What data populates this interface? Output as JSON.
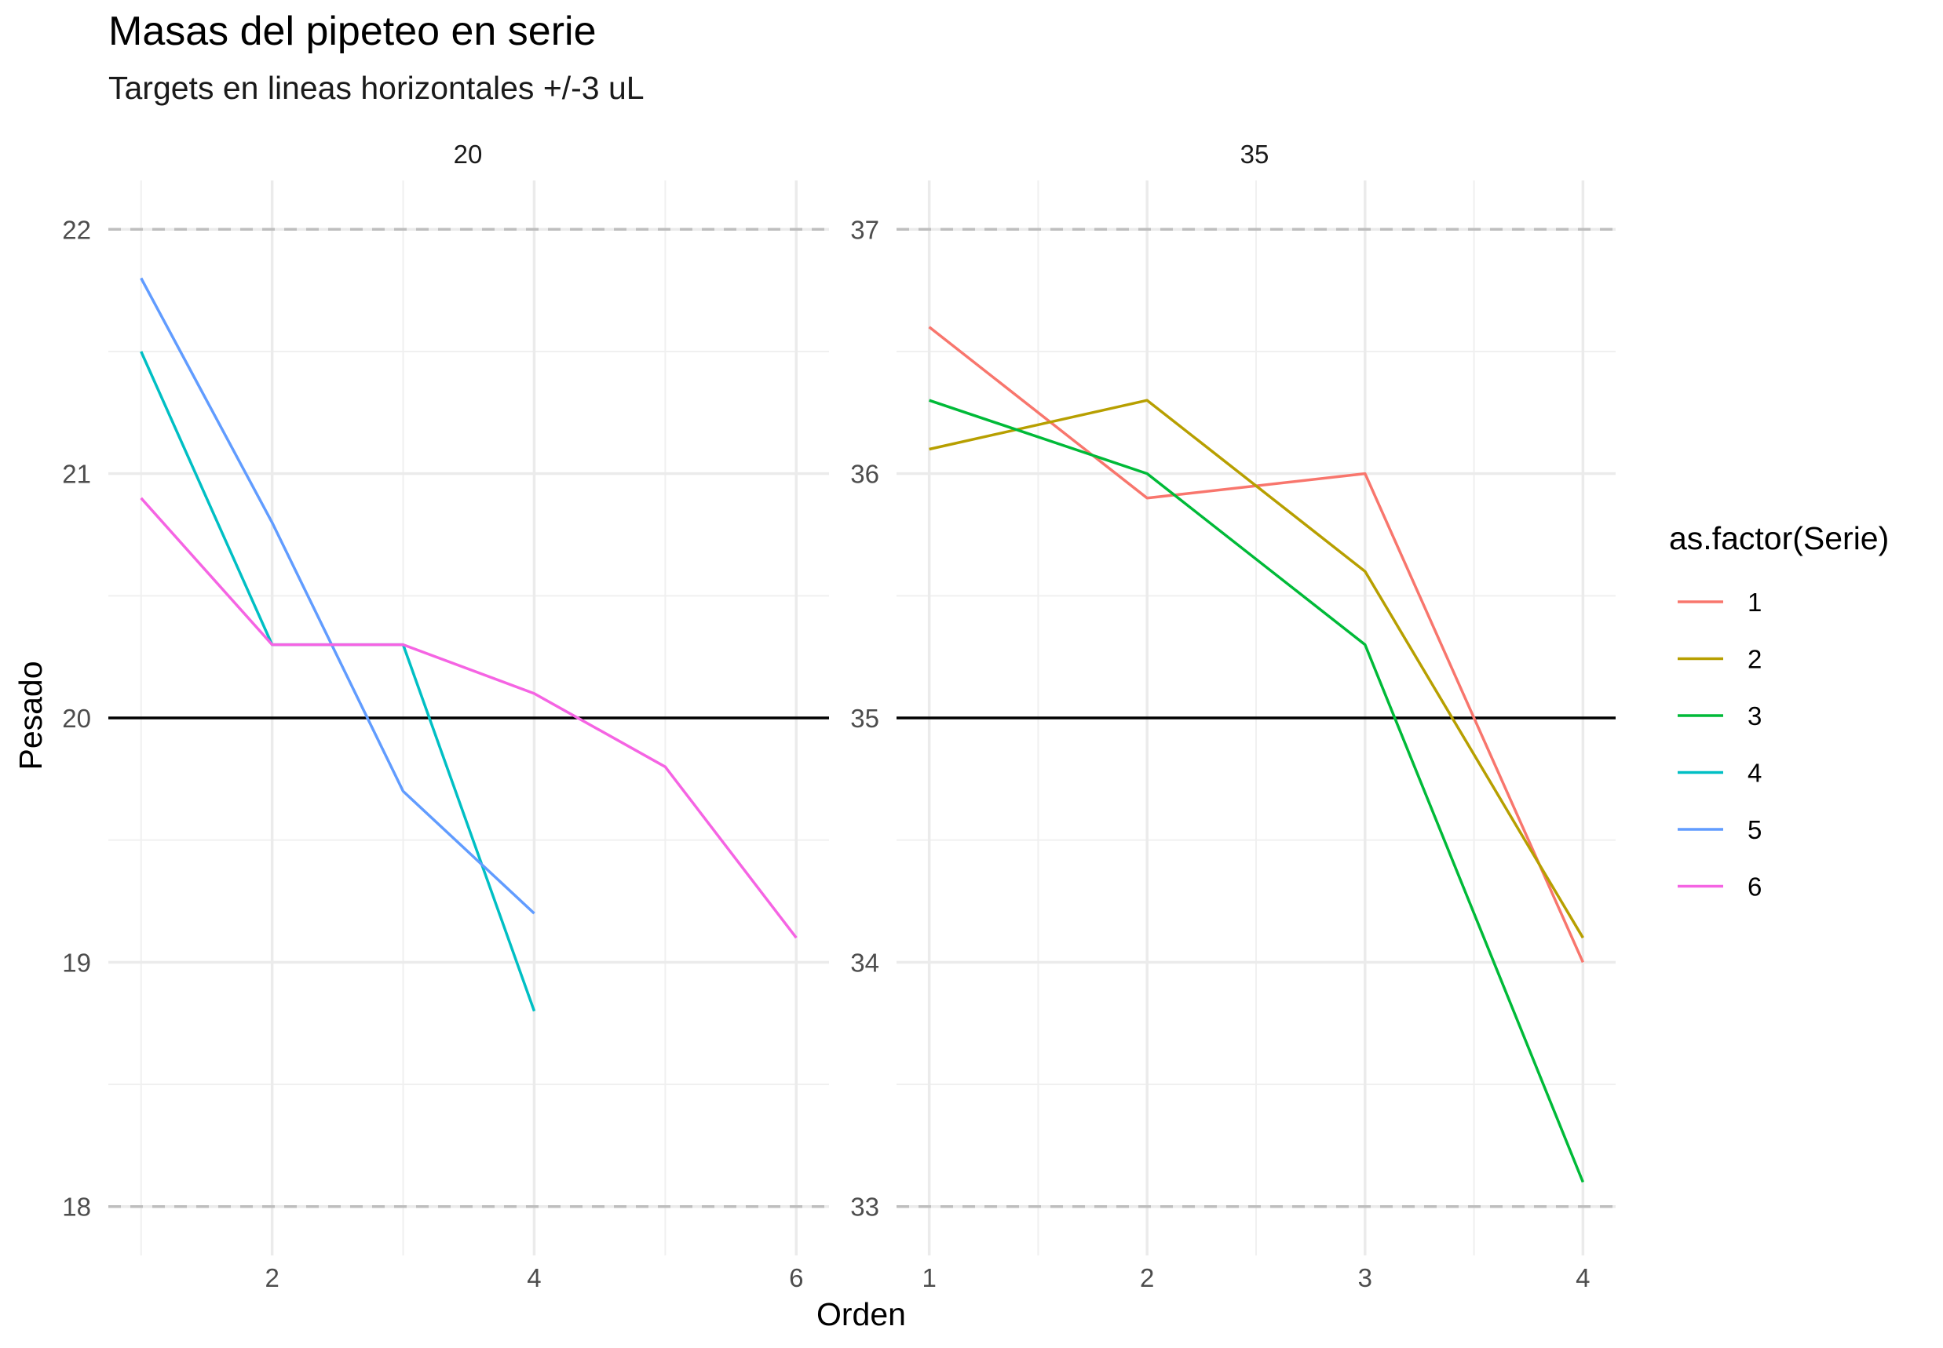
{
  "chart_data": {
    "type": "line",
    "title": "Masas del pipeteo en serie",
    "subtitle": "Targets en lineas horizontales +/-3 uL",
    "xlabel": "Orden",
    "ylabel": "Pesado",
    "legend": {
      "title": "as.factor(Serie)",
      "placement": "right",
      "entries": [
        {
          "label": "1",
          "color": "#F8766D"
        },
        {
          "label": "2",
          "color": "#B79F00"
        },
        {
          "label": "3",
          "color": "#00BA38"
        },
        {
          "label": "4",
          "color": "#00BFC4"
        },
        {
          "label": "5",
          "color": "#619CFF"
        },
        {
          "label": "6",
          "color": "#F564E3"
        }
      ]
    },
    "panels": [
      {
        "strip": "20",
        "xlim": [
          0.75,
          6.25
        ],
        "ylim": [
          17.8,
          22.2
        ],
        "xticks": [
          2,
          4,
          6
        ],
        "xticks_minor": [
          1,
          3,
          5
        ],
        "yticks": [
          18,
          19,
          20,
          21,
          22
        ],
        "yticks_minor": [
          18.5,
          19.5,
          20.5,
          21.5
        ],
        "target": 20,
        "limits": [
          18,
          22
        ],
        "series": [
          {
            "name": "4",
            "x": [
              1,
              2,
              3,
              4
            ],
            "y": [
              21.5,
              20.3,
              20.3,
              18.8
            ]
          },
          {
            "name": "5",
            "x": [
              1,
              2,
              3,
              4
            ],
            "y": [
              21.8,
              20.8,
              19.7,
              19.2
            ]
          },
          {
            "name": "6",
            "x": [
              1,
              2,
              3,
              4,
              5,
              6
            ],
            "y": [
              20.9,
              20.3,
              20.3,
              20.1,
              19.8,
              19.1
            ]
          }
        ]
      },
      {
        "strip": "35",
        "xlim": [
          0.85,
          4.15
        ],
        "ylim": [
          32.8,
          37.2
        ],
        "xticks": [
          1,
          2,
          3,
          4
        ],
        "xticks_minor": [
          1.5,
          2.5,
          3.5
        ],
        "yticks": [
          33,
          34,
          35,
          36,
          37
        ],
        "yticks_minor": [
          33.5,
          34.5,
          35.5,
          36.5
        ],
        "target": 35,
        "limits": [
          33,
          37
        ],
        "series": [
          {
            "name": "1",
            "x": [
              1,
              2,
              3,
              4
            ],
            "y": [
              36.6,
              35.9,
              36.0,
              34.0
            ]
          },
          {
            "name": "2",
            "x": [
              1,
              2,
              3,
              4
            ],
            "y": [
              36.1,
              36.3,
              35.6,
              34.1
            ]
          },
          {
            "name": "3",
            "x": [
              1,
              2,
              3,
              4
            ],
            "y": [
              36.3,
              36.0,
              35.3,
              33.1
            ]
          }
        ]
      }
    ]
  }
}
